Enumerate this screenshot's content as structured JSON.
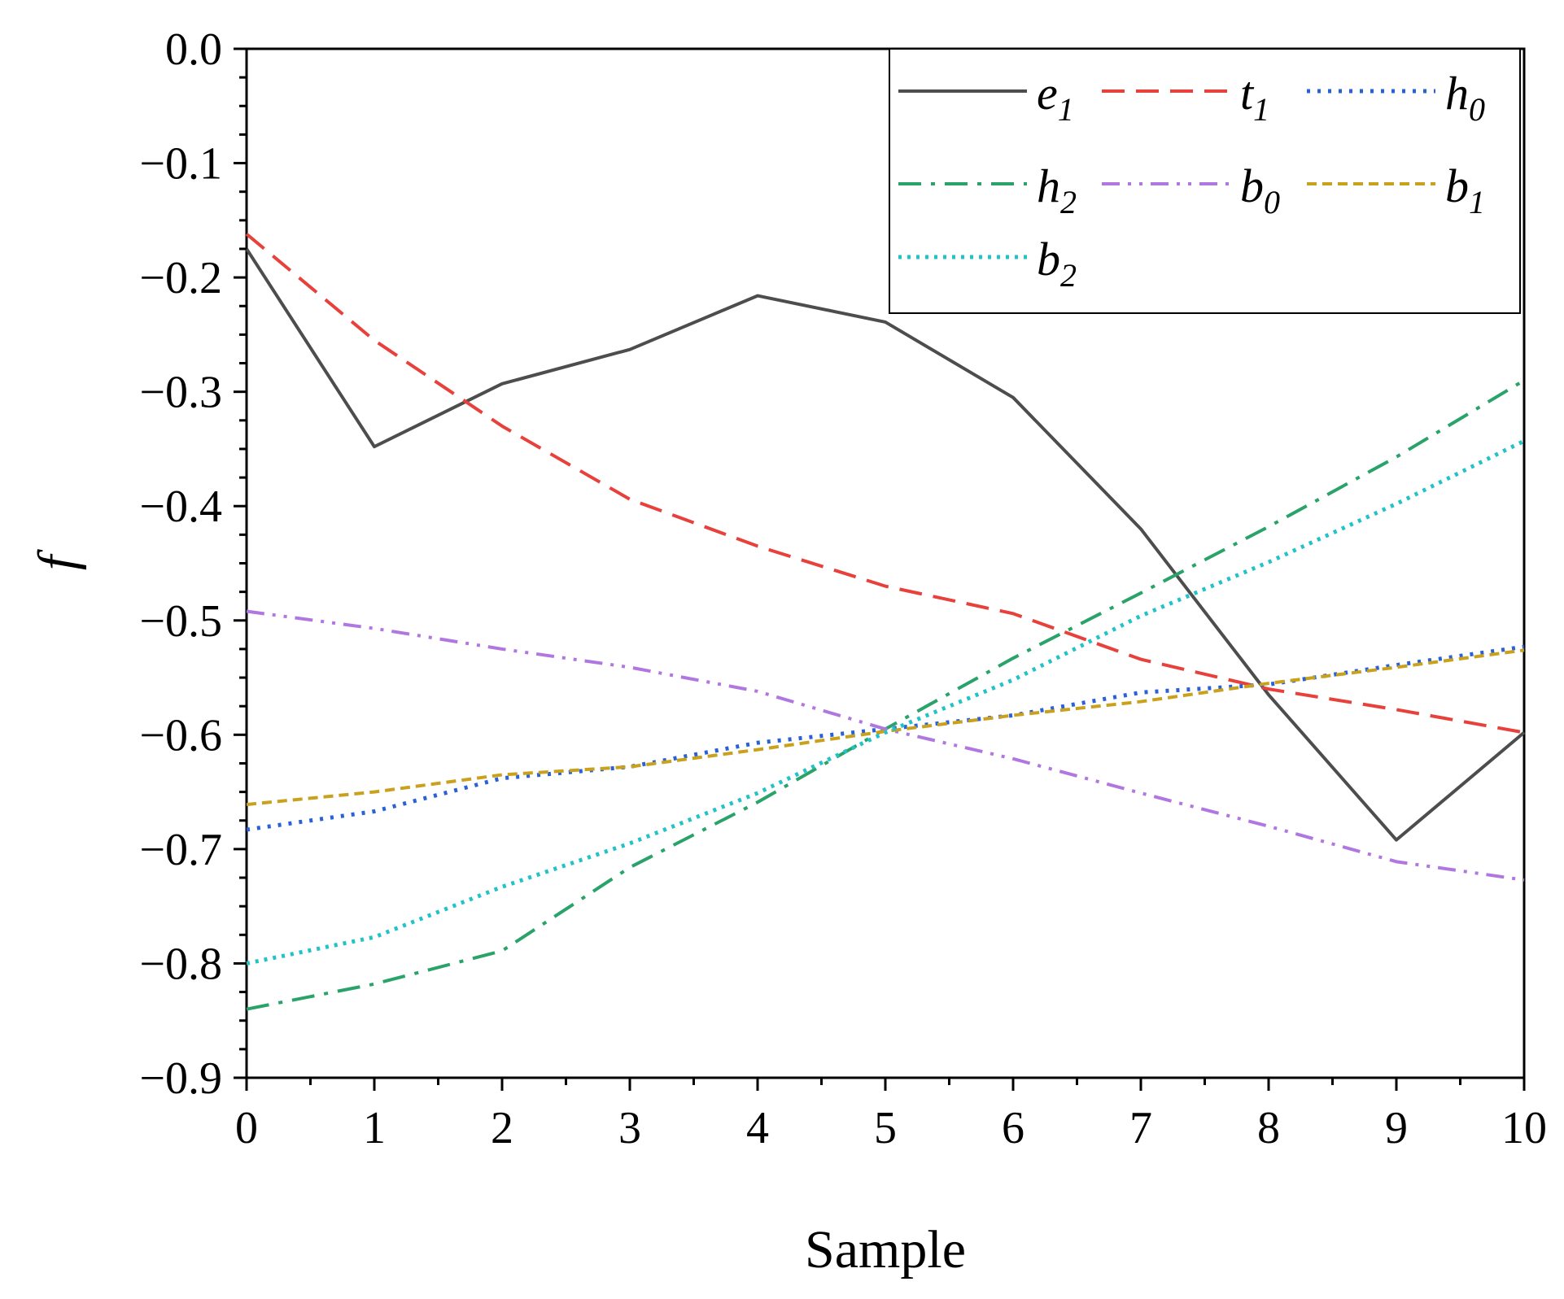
{
  "chart_data": {
    "type": "line",
    "title": "",
    "xlabel": "Sample",
    "ylabel": "f",
    "xlim": [
      0,
      10
    ],
    "ylim": [
      -0.9,
      0.0
    ],
    "x": [
      0,
      1,
      2,
      3,
      4,
      5,
      6,
      7,
      8,
      9,
      10
    ],
    "xticks": [
      "0",
      "1",
      "2",
      "3",
      "4",
      "5",
      "6",
      "7",
      "8",
      "9",
      "10"
    ],
    "yticks": [
      "0.0",
      "−0.1",
      "−0.2",
      "−0.3",
      "−0.4",
      "−0.5",
      "−0.6",
      "−0.7",
      "−0.8",
      "−0.9"
    ],
    "ytick_values": [
      0.0,
      -0.1,
      -0.2,
      -0.3,
      -0.4,
      -0.5,
      -0.6,
      -0.7,
      -0.8,
      -0.9
    ],
    "grid": false,
    "legend_position": "top-right",
    "series": [
      {
        "name": "e",
        "sub": "1",
        "color": "#4d4d4d",
        "dash": "solid",
        "values": [
          -0.175,
          -0.348,
          -0.293,
          -0.263,
          -0.216,
          -0.239,
          -0.305,
          -0.42,
          -0.565,
          -0.692,
          -0.598
        ]
      },
      {
        "name": "t",
        "sub": "1",
        "color": "#e8413c",
        "dash": "dash",
        "values": [
          -0.162,
          -0.255,
          -0.33,
          -0.394,
          -0.435,
          -0.47,
          -0.494,
          -0.534,
          -0.56,
          -0.578,
          -0.598
        ]
      },
      {
        "name": "h",
        "sub": "0",
        "color": "#2a62d6",
        "dash": "dot",
        "values": [
          -0.683,
          -0.667,
          -0.638,
          -0.628,
          -0.607,
          -0.595,
          -0.583,
          -0.563,
          -0.556,
          -0.539,
          -0.523
        ]
      },
      {
        "name": "h",
        "sub": "2",
        "color": "#2aa36a",
        "dash": "dashdot",
        "values": [
          -0.84,
          -0.818,
          -0.789,
          -0.716,
          -0.659,
          -0.595,
          -0.533,
          -0.476,
          -0.418,
          -0.357,
          -0.29
        ]
      },
      {
        "name": "b",
        "sub": "0",
        "color": "#b077e0",
        "dash": "dashdotdot",
        "values": [
          -0.492,
          -0.507,
          -0.525,
          -0.541,
          -0.562,
          -0.595,
          -0.621,
          -0.651,
          -0.68,
          -0.711,
          -0.727
        ]
      },
      {
        "name": "b",
        "sub": "1",
        "color": "#c9a11c",
        "dash": "shortdash",
        "values": [
          -0.661,
          -0.65,
          -0.635,
          -0.628,
          -0.613,
          -0.597,
          -0.583,
          -0.571,
          -0.555,
          -0.541,
          -0.526
        ]
      },
      {
        "name": "b",
        "sub": "2",
        "color": "#22c3c8",
        "dash": "densedot",
        "values": [
          -0.8,
          -0.777,
          -0.733,
          -0.695,
          -0.651,
          -0.598,
          -0.552,
          -0.496,
          -0.449,
          -0.398,
          -0.343
        ]
      }
    ]
  }
}
